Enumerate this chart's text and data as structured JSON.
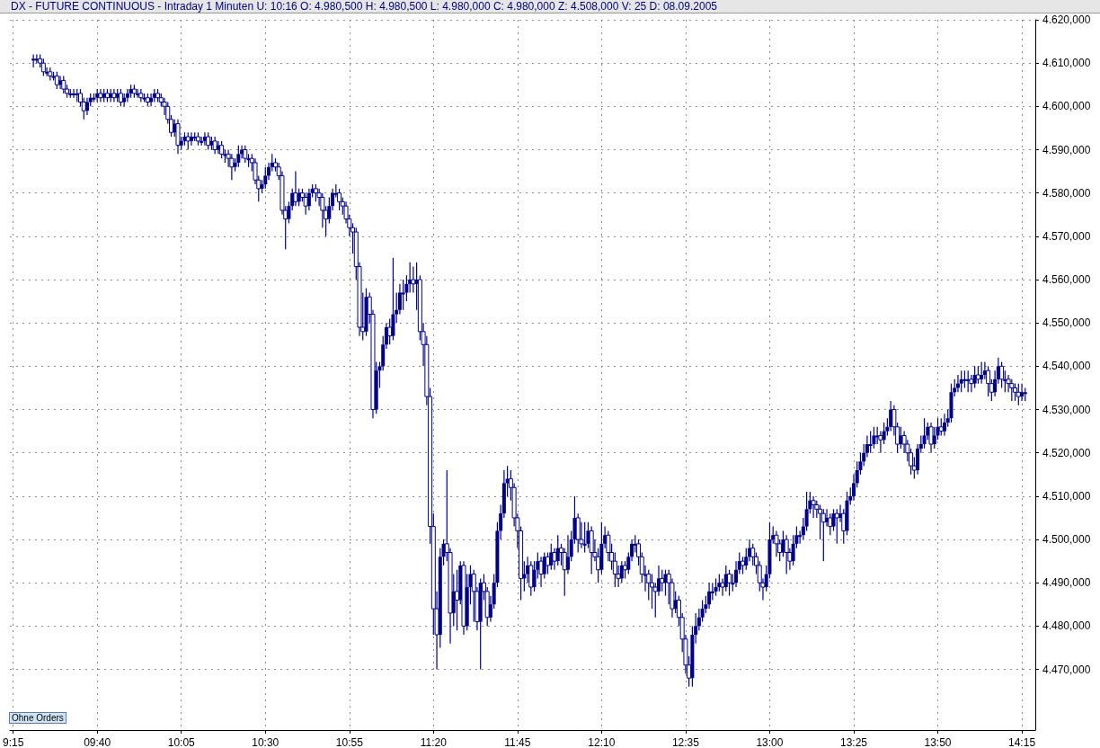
{
  "chart_data": {
    "type": "candlestick",
    "title": "DX - FUTURE CONTINUOUS - Intraday 1 Minuten U: 10:16 O: 4.980,500 H: 4.980,500 L: 4.980,000 C: 4.980,000 Z: 4.508,000 V: 25 D: 08.09.2005",
    "annotations": [
      "Ohne Orders"
    ],
    "color": "#00008b",
    "grid": true,
    "xlim": [
      "2005-09-08T09:14",
      "2005-09-08T14:19"
    ],
    "xticks": [
      {
        "value": "2005-09-08T09:15",
        "label": "9:15"
      },
      {
        "value": "2005-09-08T09:40",
        "label": "09:40"
      },
      {
        "value": "2005-09-08T10:05",
        "label": "10:05"
      },
      {
        "value": "2005-09-08T10:30",
        "label": "10:30"
      },
      {
        "value": "2005-09-08T10:55",
        "label": "10:55"
      },
      {
        "value": "2005-09-08T11:20",
        "label": "11:20"
      },
      {
        "value": "2005-09-08T11:45",
        "label": "11:45"
      },
      {
        "value": "2005-09-08T12:10",
        "label": "12:10"
      },
      {
        "value": "2005-09-08T12:35",
        "label": "12:35"
      },
      {
        "value": "2005-09-08T13:00",
        "label": "13:00"
      },
      {
        "value": "2005-09-08T13:25",
        "label": "13:25"
      },
      {
        "value": "2005-09-08T13:50",
        "label": "13:50"
      },
      {
        "value": "2005-09-08T14:15",
        "label": "14:15"
      }
    ],
    "ylim": [
      4456,
      4620
    ],
    "yticks": [
      {
        "value": 4470,
        "label": "4.470,000"
      },
      {
        "value": 4480,
        "label": "4.480,000"
      },
      {
        "value": 4490,
        "label": "4.490,000"
      },
      {
        "value": 4500,
        "label": "4.500,000"
      },
      {
        "value": 4510,
        "label": "4.510,000"
      },
      {
        "value": 4520,
        "label": "4.520,000"
      },
      {
        "value": 4530,
        "label": "4.530,000"
      },
      {
        "value": 4540,
        "label": "4.540,000"
      },
      {
        "value": 4550,
        "label": "4.550,000"
      },
      {
        "value": 4560,
        "label": "4.560,000"
      },
      {
        "value": 4570,
        "label": "4.570,000"
      },
      {
        "value": 4580,
        "label": "4.580,000"
      },
      {
        "value": 4590,
        "label": "4.590,000"
      },
      {
        "value": 4600,
        "label": "4.600,000"
      },
      {
        "value": 4610,
        "label": "4.610,000"
      },
      {
        "value": 4620,
        "label": "4.620,000"
      }
    ],
    "x": [
      "2005-09-08T09:21",
      "2005-09-08T09:22",
      "2005-09-08T09:23",
      "2005-09-08T09:24",
      "2005-09-08T09:25",
      "2005-09-08T09:26",
      "2005-09-08T09:27",
      "2005-09-08T09:28",
      "2005-09-08T09:29",
      "2005-09-08T09:30",
      "2005-09-08T09:31",
      "2005-09-08T09:32",
      "2005-09-08T09:33",
      "2005-09-08T09:34",
      "2005-09-08T09:35",
      "2005-09-08T09:36",
      "2005-09-08T09:37",
      "2005-09-08T09:38",
      "2005-09-08T09:39",
      "2005-09-08T09:40",
      "2005-09-08T09:41",
      "2005-09-08T09:42",
      "2005-09-08T09:43",
      "2005-09-08T09:44",
      "2005-09-08T09:45",
      "2005-09-08T09:46",
      "2005-09-08T09:47",
      "2005-09-08T09:48",
      "2005-09-08T09:49",
      "2005-09-08T09:50",
      "2005-09-08T09:51",
      "2005-09-08T09:52",
      "2005-09-08T09:53",
      "2005-09-08T09:54",
      "2005-09-08T09:55",
      "2005-09-08T09:56",
      "2005-09-08T09:57",
      "2005-09-08T09:58",
      "2005-09-08T09:59",
      "2005-09-08T10:00",
      "2005-09-08T10:01",
      "2005-09-08T10:02",
      "2005-09-08T10:03",
      "2005-09-08T10:04",
      "2005-09-08T10:05",
      "2005-09-08T10:06",
      "2005-09-08T10:07",
      "2005-09-08T10:08",
      "2005-09-08T10:09",
      "2005-09-08T10:10",
      "2005-09-08T10:11",
      "2005-09-08T10:12",
      "2005-09-08T10:13",
      "2005-09-08T10:14",
      "2005-09-08T10:15",
      "2005-09-08T10:16",
      "2005-09-08T10:17",
      "2005-09-08T10:18",
      "2005-09-08T10:19",
      "2005-09-08T10:20",
      "2005-09-08T10:21",
      "2005-09-08T10:22",
      "2005-09-08T10:23",
      "2005-09-08T10:24",
      "2005-09-08T10:25",
      "2005-09-08T10:26",
      "2005-09-08T10:27",
      "2005-09-08T10:28",
      "2005-09-08T10:29",
      "2005-09-08T10:30",
      "2005-09-08T10:31",
      "2005-09-08T10:32",
      "2005-09-08T10:33",
      "2005-09-08T10:34",
      "2005-09-08T10:35",
      "2005-09-08T10:36",
      "2005-09-08T10:37",
      "2005-09-08T10:38",
      "2005-09-08T10:39",
      "2005-09-08T10:40",
      "2005-09-08T10:41",
      "2005-09-08T10:42",
      "2005-09-08T10:43",
      "2005-09-08T10:44",
      "2005-09-08T10:45",
      "2005-09-08T10:46",
      "2005-09-08T10:47",
      "2005-09-08T10:48",
      "2005-09-08T10:49",
      "2005-09-08T10:50",
      "2005-09-08T10:51",
      "2005-09-08T10:52",
      "2005-09-08T10:53",
      "2005-09-08T10:54",
      "2005-09-08T10:55",
      "2005-09-08T10:56",
      "2005-09-08T10:57",
      "2005-09-08T10:58",
      "2005-09-08T10:59",
      "2005-09-08T11:00",
      "2005-09-08T11:01",
      "2005-09-08T11:02",
      "2005-09-08T11:03",
      "2005-09-08T11:04",
      "2005-09-08T11:05",
      "2005-09-08T11:06",
      "2005-09-08T11:07",
      "2005-09-08T11:08",
      "2005-09-08T11:09",
      "2005-09-08T11:10",
      "2005-09-08T11:11",
      "2005-09-08T11:12",
      "2005-09-08T11:13",
      "2005-09-08T11:14",
      "2005-09-08T11:15",
      "2005-09-08T11:16",
      "2005-09-08T11:17",
      "2005-09-08T11:18",
      "2005-09-08T11:19",
      "2005-09-08T11:20",
      "2005-09-08T11:21",
      "2005-09-08T11:22",
      "2005-09-08T11:23",
      "2005-09-08T11:24",
      "2005-09-08T11:25",
      "2005-09-08T11:26",
      "2005-09-08T11:27",
      "2005-09-08T11:28",
      "2005-09-08T11:29",
      "2005-09-08T11:30",
      "2005-09-08T11:31",
      "2005-09-08T11:32",
      "2005-09-08T11:33",
      "2005-09-08T11:34",
      "2005-09-08T11:35",
      "2005-09-08T11:36",
      "2005-09-08T11:37",
      "2005-09-08T11:38",
      "2005-09-08T11:39",
      "2005-09-08T11:40",
      "2005-09-08T11:41",
      "2005-09-08T11:42",
      "2005-09-08T11:43",
      "2005-09-08T11:44",
      "2005-09-08T11:45",
      "2005-09-08T11:46",
      "2005-09-08T11:47",
      "2005-09-08T11:48",
      "2005-09-08T11:49",
      "2005-09-08T11:50",
      "2005-09-08T11:51",
      "2005-09-08T11:52",
      "2005-09-08T11:53",
      "2005-09-08T11:54",
      "2005-09-08T11:55",
      "2005-09-08T11:56",
      "2005-09-08T11:57",
      "2005-09-08T11:58",
      "2005-09-08T11:59",
      "2005-09-08T12:00",
      "2005-09-08T12:01",
      "2005-09-08T12:02",
      "2005-09-08T12:03",
      "2005-09-08T12:04",
      "2005-09-08T12:05",
      "2005-09-08T12:06",
      "2005-09-08T12:07",
      "2005-09-08T12:08",
      "2005-09-08T12:09",
      "2005-09-08T12:10",
      "2005-09-08T12:11",
      "2005-09-08T12:12",
      "2005-09-08T12:13",
      "2005-09-08T12:14",
      "2005-09-08T12:15",
      "2005-09-08T12:16",
      "2005-09-08T12:17",
      "2005-09-08T12:18",
      "2005-09-08T12:19",
      "2005-09-08T12:20",
      "2005-09-08T12:21",
      "2005-09-08T12:22",
      "2005-09-08T12:23",
      "2005-09-08T12:24",
      "2005-09-08T12:25",
      "2005-09-08T12:26",
      "2005-09-08T12:27",
      "2005-09-08T12:28",
      "2005-09-08T12:29",
      "2005-09-08T12:30",
      "2005-09-08T12:31",
      "2005-09-08T12:32",
      "2005-09-08T12:33",
      "2005-09-08T12:34",
      "2005-09-08T12:35",
      "2005-09-08T12:36",
      "2005-09-08T12:37",
      "2005-09-08T12:38",
      "2005-09-08T12:39",
      "2005-09-08T12:40",
      "2005-09-08T12:41",
      "2005-09-08T12:42",
      "2005-09-08T12:43",
      "2005-09-08T12:44",
      "2005-09-08T12:45",
      "2005-09-08T12:46",
      "2005-09-08T12:47",
      "2005-09-08T12:48",
      "2005-09-08T12:49",
      "2005-09-08T12:50",
      "2005-09-08T12:51",
      "2005-09-08T12:52",
      "2005-09-08T12:53",
      "2005-09-08T12:54",
      "2005-09-08T12:55",
      "2005-09-08T12:56",
      "2005-09-08T12:57",
      "2005-09-08T12:58",
      "2005-09-08T12:59",
      "2005-09-08T13:00",
      "2005-09-08T13:01",
      "2005-09-08T13:02",
      "2005-09-08T13:03",
      "2005-09-08T13:04",
      "2005-09-08T13:05",
      "2005-09-08T13:06",
      "2005-09-08T13:07",
      "2005-09-08T13:08",
      "2005-09-08T13:09",
      "2005-09-08T13:10",
      "2005-09-08T13:11",
      "2005-09-08T13:12",
      "2005-09-08T13:13",
      "2005-09-08T13:14",
      "2005-09-08T13:15",
      "2005-09-08T13:16",
      "2005-09-08T13:17",
      "2005-09-08T13:18",
      "2005-09-08T13:19",
      "2005-09-08T13:20",
      "2005-09-08T13:21",
      "2005-09-08T13:22",
      "2005-09-08T13:23",
      "2005-09-08T13:24",
      "2005-09-08T13:25",
      "2005-09-08T13:26",
      "2005-09-08T13:27",
      "2005-09-08T13:28",
      "2005-09-08T13:29",
      "2005-09-08T13:30",
      "2005-09-08T13:31",
      "2005-09-08T13:32",
      "2005-09-08T13:33",
      "2005-09-08T13:34",
      "2005-09-08T13:35",
      "2005-09-08T13:36",
      "2005-09-08T13:37",
      "2005-09-08T13:38",
      "2005-09-08T13:39",
      "2005-09-08T13:40",
      "2005-09-08T13:41",
      "2005-09-08T13:42",
      "2005-09-08T13:43",
      "2005-09-08T13:44",
      "2005-09-08T13:45",
      "2005-09-08T13:46",
      "2005-09-08T13:47",
      "2005-09-08T13:48",
      "2005-09-08T13:49",
      "2005-09-08T13:50",
      "2005-09-08T13:51",
      "2005-09-08T13:52",
      "2005-09-08T13:53",
      "2005-09-08T13:54",
      "2005-09-08T13:55",
      "2005-09-08T13:56",
      "2005-09-08T13:57",
      "2005-09-08T13:58",
      "2005-09-08T13:59",
      "2005-09-08T14:00",
      "2005-09-08T14:01",
      "2005-09-08T14:02",
      "2005-09-08T14:03",
      "2005-09-08T14:04",
      "2005-09-08T14:05",
      "2005-09-08T14:06",
      "2005-09-08T14:07",
      "2005-09-08T14:08",
      "2005-09-08T14:09",
      "2005-09-08T14:10",
      "2005-09-08T14:11",
      "2005-09-08T14:12",
      "2005-09-08T14:13",
      "2005-09-08T14:14",
      "2005-09-08T14:15",
      "2005-09-08T14:16"
    ],
    "ohlc": [
      [
        4611,
        4612,
        4609,
        4611
      ],
      [
        4611,
        4612,
        4610,
        4611
      ],
      [
        4611,
        4612,
        4609,
        4610
      ],
      [
        4610,
        4611,
        4607,
        4608
      ],
      [
        4608,
        4609,
        4607,
        4608
      ],
      [
        4608,
        4609,
        4606,
        4607
      ],
      [
        4607,
        4608,
        4606,
        4607
      ],
      [
        4607,
        4608,
        4604,
        4605
      ],
      [
        4605,
        4607,
        4604,
        4606
      ],
      [
        4606,
        4607,
        4603,
        4604
      ],
      [
        4604,
        4605,
        4602,
        4603
      ],
      [
        4603,
        4604,
        4602,
        4603
      ],
      [
        4603,
        4604,
        4602,
        4603
      ],
      [
        4603,
        4604,
        4601,
        4603
      ],
      [
        4603,
        4604,
        4600,
        4601
      ],
      [
        4601,
        4602,
        4597,
        4599
      ],
      [
        4599,
        4602,
        4598,
        4601
      ],
      [
        4601,
        4603,
        4600,
        4602
      ],
      [
        4602,
        4603,
        4601,
        4602
      ],
      [
        4602,
        4604,
        4601,
        4603
      ],
      [
        4603,
        4604,
        4601,
        4602
      ],
      [
        4602,
        4604,
        4601,
        4603
      ],
      [
        4603,
        4604,
        4601,
        4602
      ],
      [
        4602,
        4604,
        4601,
        4603
      ],
      [
        4603,
        4604,
        4601,
        4602
      ],
      [
        4602,
        4604,
        4601,
        4603
      ],
      [
        4603,
        4604,
        4600,
        4601
      ],
      [
        4601,
        4603,
        4600,
        4602
      ],
      [
        4602,
        4604,
        4601,
        4603
      ],
      [
        4603,
        4605,
        4602,
        4604
      ],
      [
        4604,
        4605,
        4602,
        4603
      ],
      [
        4603,
        4604,
        4602,
        4603
      ],
      [
        4603,
        4604,
        4601,
        4602
      ],
      [
        4602,
        4603,
        4601,
        4602
      ],
      [
        4602,
        4603,
        4600,
        4601
      ],
      [
        4601,
        4603,
        4600,
        4602
      ],
      [
        4602,
        4604,
        4601,
        4603
      ],
      [
        4603,
        4604,
        4601,
        4602
      ],
      [
        4602,
        4603,
        4600,
        4601
      ],
      [
        4601,
        4602,
        4598,
        4600
      ],
      [
        4600,
        4601,
        4596,
        4597
      ],
      [
        4597,
        4598,
        4593,
        4594
      ],
      [
        4594,
        4597,
        4593,
        4596
      ],
      [
        4596,
        4597,
        4589,
        4591
      ],
      [
        4591,
        4593,
        4590,
        4592
      ],
      [
        4592,
        4594,
        4591,
        4593
      ],
      [
        4593,
        4594,
        4590,
        4592
      ],
      [
        4592,
        4594,
        4591,
        4593
      ],
      [
        4593,
        4594,
        4592,
        4593
      ],
      [
        4593,
        4594,
        4591,
        4592
      ],
      [
        4592,
        4593,
        4591,
        4592
      ],
      [
        4592,
        4594,
        4591,
        4593
      ],
      [
        4593,
        4594,
        4590,
        4591
      ],
      [
        4591,
        4593,
        4590,
        4592
      ],
      [
        4592,
        4593,
        4589,
        4590
      ],
      [
        4590,
        4592,
        4589,
        4591
      ],
      [
        4591,
        4592,
        4588,
        4589
      ],
      [
        4589,
        4590,
        4587,
        4589
      ],
      [
        4589,
        4590,
        4586,
        4588
      ],
      [
        4588,
        4589,
        4583,
        4586
      ],
      [
        4586,
        4588,
        4585,
        4587
      ],
      [
        4587,
        4591,
        4586,
        4589
      ],
      [
        4589,
        4591,
        4588,
        4590
      ],
      [
        4590,
        4591,
        4587,
        4588
      ],
      [
        4588,
        4589,
        4586,
        4588
      ],
      [
        4588,
        4589,
        4585,
        4587
      ],
      [
        4587,
        4588,
        4582,
        4583
      ],
      [
        4583,
        4584,
        4578,
        4581
      ],
      [
        4581,
        4583,
        4580,
        4582
      ],
      [
        4582,
        4586,
        4581,
        4584
      ],
      [
        4584,
        4587,
        4583,
        4586
      ],
      [
        4586,
        4589,
        4585,
        4587
      ],
      [
        4587,
        4588,
        4585,
        4586
      ],
      [
        4586,
        4587,
        4583,
        4584
      ],
      [
        4584,
        4585,
        4575,
        4576
      ],
      [
        4576,
        4577,
        4567,
        4574
      ],
      [
        4574,
        4578,
        4573,
        4577
      ],
      [
        4577,
        4581,
        4576,
        4580
      ],
      [
        4580,
        4585,
        4577,
        4578
      ],
      [
        4578,
        4581,
        4577,
        4580
      ],
      [
        4580,
        4581,
        4578,
        4579
      ],
      [
        4579,
        4580,
        4575,
        4577
      ],
      [
        4577,
        4581,
        4576,
        4580
      ],
      [
        4580,
        4582,
        4579,
        4581
      ],
      [
        4581,
        4582,
        4578,
        4580
      ],
      [
        4580,
        4581,
        4577,
        4579
      ],
      [
        4579,
        4580,
        4572,
        4576
      ],
      [
        4576,
        4577,
        4570,
        4574
      ],
      [
        4574,
        4579,
        4573,
        4577
      ],
      [
        4577,
        4581,
        4576,
        4580
      ],
      [
        4580,
        4582,
        4579,
        4580
      ],
      [
        4580,
        4581,
        4576,
        4578
      ],
      [
        4578,
        4579,
        4575,
        4577
      ],
      [
        4577,
        4578,
        4573,
        4574
      ],
      [
        4574,
        4575,
        4570,
        4572
      ],
      [
        4572,
        4573,
        4566,
        4571
      ],
      [
        4571,
        4572,
        4560,
        4563
      ],
      [
        4563,
        4564,
        4547,
        4549
      ],
      [
        4549,
        4557,
        4546,
        4548
      ],
      [
        4548,
        4558,
        4547,
        4556
      ],
      [
        4556,
        4557,
        4550,
        4552
      ],
      [
        4552,
        4553,
        4528,
        4530
      ],
      [
        4530,
        4541,
        4529,
        4539
      ],
      [
        4539,
        4541,
        4535,
        4540
      ],
      [
        4540,
        4547,
        4539,
        4545
      ],
      [
        4545,
        4550,
        4544,
        4549
      ],
      [
        4549,
        4551,
        4545,
        4547
      ],
      [
        4547,
        4565,
        4546,
        4552
      ],
      [
        4552,
        4557,
        4550,
        4553
      ],
      [
        4553,
        4559,
        4552,
        4557
      ],
      [
        4557,
        4560,
        4553,
        4557
      ],
      [
        4557,
        4561,
        4555,
        4559
      ],
      [
        4559,
        4564,
        4557,
        4560
      ],
      [
        4560,
        4563,
        4557,
        4559
      ],
      [
        4559,
        4564,
        4553,
        4560
      ],
      [
        4560,
        4561,
        4546,
        4548
      ],
      [
        4548,
        4550,
        4540,
        4545
      ],
      [
        4545,
        4547,
        4531,
        4533
      ],
      [
        4533,
        4535,
        4499,
        4503
      ],
      [
        4503,
        4506,
        4478,
        4484
      ],
      [
        4484,
        4488,
        4470,
        4478
      ],
      [
        4478,
        4498,
        4475,
        4496
      ],
      [
        4496,
        4500,
        4494,
        4499
      ],
      [
        4499,
        4516,
        4495,
        4497
      ],
      [
        4497,
        4498,
        4476,
        4483
      ],
      [
        4483,
        4492,
        4480,
        4488
      ],
      [
        4488,
        4493,
        4479,
        4486
      ],
      [
        4486,
        4495,
        4485,
        4494
      ],
      [
        4494,
        4495,
        4478,
        4480
      ],
      [
        4480,
        4492,
        4479,
        4489
      ],
      [
        4489,
        4494,
        4485,
        4492
      ],
      [
        4492,
        4493,
        4481,
        4488
      ],
      [
        4488,
        4489,
        4479,
        4481
      ],
      [
        4481,
        4491,
        4470,
        4490
      ],
      [
        4490,
        4492,
        4486,
        4488
      ],
      [
        4488,
        4489,
        4480,
        4482
      ],
      [
        4482,
        4487,
        4481,
        4485
      ],
      [
        4485,
        4492,
        4484,
        4490
      ],
      [
        4490,
        4504,
        4489,
        4502
      ],
      [
        4502,
        4508,
        4500,
        4506
      ],
      [
        4506,
        4516,
        4505,
        4513
      ],
      [
        4513,
        4517,
        4510,
        4514
      ],
      [
        4514,
        4516,
        4509,
        4512
      ],
      [
        4512,
        4513,
        4503,
        4505
      ],
      [
        4505,
        4506,
        4498,
        4502
      ],
      [
        4502,
        4503,
        4486,
        4491
      ],
      [
        4491,
        4495,
        4488,
        4492
      ],
      [
        4492,
        4496,
        4490,
        4494
      ],
      [
        4494,
        4495,
        4487,
        4489
      ],
      [
        4489,
        4495,
        4488,
        4493
      ],
      [
        4493,
        4497,
        4491,
        4495
      ],
      [
        4495,
        4496,
        4489,
        4492
      ],
      [
        4492,
        4497,
        4491,
        4496
      ],
      [
        4496,
        4497,
        4492,
        4494
      ],
      [
        4494,
        4499,
        4493,
        4497
      ],
      [
        4497,
        4498,
        4493,
        4495
      ],
      [
        4495,
        4501,
        4494,
        4498
      ],
      [
        4498,
        4499,
        4494,
        4497
      ],
      [
        4497,
        4498,
        4487,
        4493
      ],
      [
        4493,
        4501,
        4492,
        4496
      ],
      [
        4496,
        4502,
        4495,
        4500
      ],
      [
        4500,
        4510,
        4499,
        4505
      ],
      [
        4505,
        4506,
        4497,
        4500
      ],
      [
        4500,
        4504,
        4498,
        4499
      ],
      [
        4499,
        4504,
        4497,
        4499
      ],
      [
        4499,
        4504,
        4498,
        4502
      ],
      [
        4502,
        4503,
        4492,
        4497
      ],
      [
        4497,
        4500,
        4495,
        4496
      ],
      [
        4496,
        4498,
        4490,
        4493
      ],
      [
        4493,
        4504,
        4492,
        4499
      ],
      [
        4499,
        4503,
        4498,
        4501
      ],
      [
        4501,
        4502,
        4495,
        4497
      ],
      [
        4497,
        4499,
        4493,
        4495
      ],
      [
        4495,
        4497,
        4489,
        4492
      ],
      [
        4492,
        4494,
        4489,
        4491
      ],
      [
        4491,
        4495,
        4490,
        4494
      ],
      [
        4494,
        4495,
        4491,
        4493
      ],
      [
        4493,
        4497,
        4492,
        4496
      ],
      [
        4496,
        4500,
        4495,
        4499
      ],
      [
        4499,
        4501,
        4497,
        4499
      ],
      [
        4499,
        4500,
        4494,
        4496
      ],
      [
        4496,
        4497,
        4490,
        4492
      ],
      [
        4492,
        4494,
        4488,
        4492
      ],
      [
        4492,
        4493,
        4486,
        4490
      ],
      [
        4490,
        4492,
        4484,
        4489
      ],
      [
        4489,
        4490,
        4482,
        4488
      ],
      [
        4488,
        4494,
        4487,
        4491
      ],
      [
        4491,
        4493,
        4488,
        4490
      ],
      [
        4490,
        4493,
        4487,
        4492
      ],
      [
        4492,
        4493,
        4485,
        4490
      ],
      [
        4490,
        4491,
        4482,
        4484
      ],
      [
        4484,
        4488,
        4483,
        4486
      ],
      [
        4486,
        4487,
        4480,
        4482
      ],
      [
        4482,
        4483,
        4474,
        4477
      ],
      [
        4477,
        4478,
        4469,
        4471
      ],
      [
        4471,
        4473,
        4466,
        4468
      ],
      [
        4468,
        4480,
        4466,
        4478
      ],
      [
        4478,
        4483,
        4476,
        4480
      ],
      [
        4480,
        4484,
        4479,
        4482
      ],
      [
        4482,
        4486,
        4481,
        4484
      ],
      [
        4484,
        4487,
        4483,
        4485
      ],
      [
        4485,
        4490,
        4484,
        4488
      ],
      [
        4488,
        4490,
        4486,
        4488
      ],
      [
        4488,
        4491,
        4487,
        4489
      ],
      [
        4489,
        4492,
        4488,
        4490
      ],
      [
        4490,
        4491,
        4487,
        4489
      ],
      [
        4489,
        4494,
        4488,
        4492
      ],
      [
        4492,
        4493,
        4487,
        4490
      ],
      [
        4490,
        4492,
        4488,
        4490
      ],
      [
        4490,
        4495,
        4489,
        4493
      ],
      [
        4493,
        4497,
        4492,
        4495
      ],
      [
        4495,
        4496,
        4492,
        4494
      ],
      [
        4494,
        4498,
        4493,
        4496
      ],
      [
        4496,
        4500,
        4495,
        4498
      ],
      [
        4498,
        4499,
        4494,
        4496
      ],
      [
        4496,
        4497,
        4492,
        4494
      ],
      [
        4494,
        4495,
        4488,
        4490
      ],
      [
        4490,
        4491,
        4486,
        4489
      ],
      [
        4489,
        4494,
        4488,
        4492
      ],
      [
        4492,
        4504,
        4491,
        4500
      ],
      [
        4500,
        4503,
        4499,
        4501
      ],
      [
        4501,
        4502,
        4496,
        4499
      ],
      [
        4499,
        4500,
        4495,
        4497
      ],
      [
        4497,
        4502,
        4496,
        4500
      ],
      [
        4500,
        4501,
        4492,
        4497
      ],
      [
        4497,
        4498,
        4493,
        4495
      ],
      [
        4495,
        4501,
        4494,
        4499
      ],
      [
        4499,
        4503,
        4498,
        4501
      ],
      [
        4501,
        4502,
        4499,
        4501
      ],
      [
        4501,
        4505,
        4500,
        4503
      ],
      [
        4503,
        4511,
        4502,
        4507
      ],
      [
        4507,
        4511,
        4506,
        4509
      ],
      [
        4509,
        4510,
        4505,
        4508
      ],
      [
        4508,
        4509,
        4505,
        4507
      ],
      [
        4507,
        4508,
        4500,
        4506
      ],
      [
        4506,
        4507,
        4495,
        4504
      ],
      [
        4504,
        4507,
        4503,
        4505
      ],
      [
        4505,
        4506,
        4501,
        4503
      ],
      [
        4503,
        4507,
        4502,
        4506
      ],
      [
        4506,
        4507,
        4499,
        4505
      ],
      [
        4505,
        4508,
        4504,
        4506
      ],
      [
        4506,
        4507,
        4499,
        4502
      ],
      [
        4502,
        4511,
        4501,
        4509
      ],
      [
        4509,
        4512,
        4508,
        4510
      ],
      [
        4510,
        4515,
        4509,
        4513
      ],
      [
        4513,
        4518,
        4512,
        4516
      ],
      [
        4516,
        4520,
        4515,
        4518
      ],
      [
        4518,
        4522,
        4517,
        4520
      ],
      [
        4520,
        4524,
        4519,
        4522
      ],
      [
        4522,
        4525,
        4520,
        4522
      ],
      [
        4522,
        4526,
        4521,
        4524
      ],
      [
        4524,
        4526,
        4522,
        4524
      ],
      [
        4524,
        4525,
        4520,
        4523
      ],
      [
        4523,
        4527,
        4522,
        4525
      ],
      [
        4525,
        4528,
        4524,
        4526
      ],
      [
        4526,
        4532,
        4525,
        4530
      ],
      [
        4530,
        4531,
        4524,
        4526
      ],
      [
        4526,
        4527,
        4520,
        4522
      ],
      [
        4522,
        4526,
        4521,
        4524
      ],
      [
        4524,
        4525,
        4520,
        4522
      ],
      [
        4522,
        4523,
        4518,
        4520
      ],
      [
        4520,
        4521,
        4515,
        4517
      ],
      [
        4517,
        4519,
        4514,
        4516
      ],
      [
        4516,
        4522,
        4515,
        4521
      ],
      [
        4521,
        4524,
        4520,
        4522
      ],
      [
        4522,
        4528,
        4521,
        4524
      ],
      [
        4524,
        4527,
        4523,
        4526
      ],
      [
        4526,
        4527,
        4520,
        4522
      ],
      [
        4522,
        4526,
        4521,
        4524
      ],
      [
        4524,
        4528,
        4523,
        4526
      ],
      [
        4526,
        4528,
        4524,
        4525
      ],
      [
        4525,
        4529,
        4524,
        4527
      ],
      [
        4527,
        4530,
        4526,
        4528
      ],
      [
        4528,
        4536,
        4527,
        4534
      ],
      [
        4534,
        4537,
        4533,
        4535
      ],
      [
        4535,
        4538,
        4534,
        4536
      ],
      [
        4536,
        4539,
        4534,
        4537
      ],
      [
        4537,
        4539,
        4535,
        4537
      ],
      [
        4537,
        4539,
        4534,
        4537
      ],
      [
        4537,
        4538,
        4534,
        4536
      ],
      [
        4536,
        4540,
        4535,
        4538
      ],
      [
        4538,
        4540,
        4536,
        4537
      ],
      [
        4537,
        4541,
        4536,
        4538
      ],
      [
        4538,
        4541,
        4537,
        4539
      ],
      [
        4539,
        4540,
        4533,
        4536
      ],
      [
        4536,
        4537,
        4532,
        4534
      ],
      [
        4534,
        4539,
        4533,
        4537
      ],
      [
        4537,
        4542,
        4536,
        4540
      ],
      [
        4540,
        4541,
        4535,
        4537
      ],
      [
        4537,
        4539,
        4534,
        4537
      ],
      [
        4537,
        4538,
        4534,
        4536
      ],
      [
        4536,
        4537,
        4532,
        4535
      ],
      [
        4535,
        4536,
        4532,
        4534
      ],
      [
        4534,
        4536,
        4531,
        4533
      ],
      [
        4533,
        4536,
        4532,
        4534
      ],
      [
        4534,
        4535,
        4532,
        4534
      ]
    ]
  }
}
